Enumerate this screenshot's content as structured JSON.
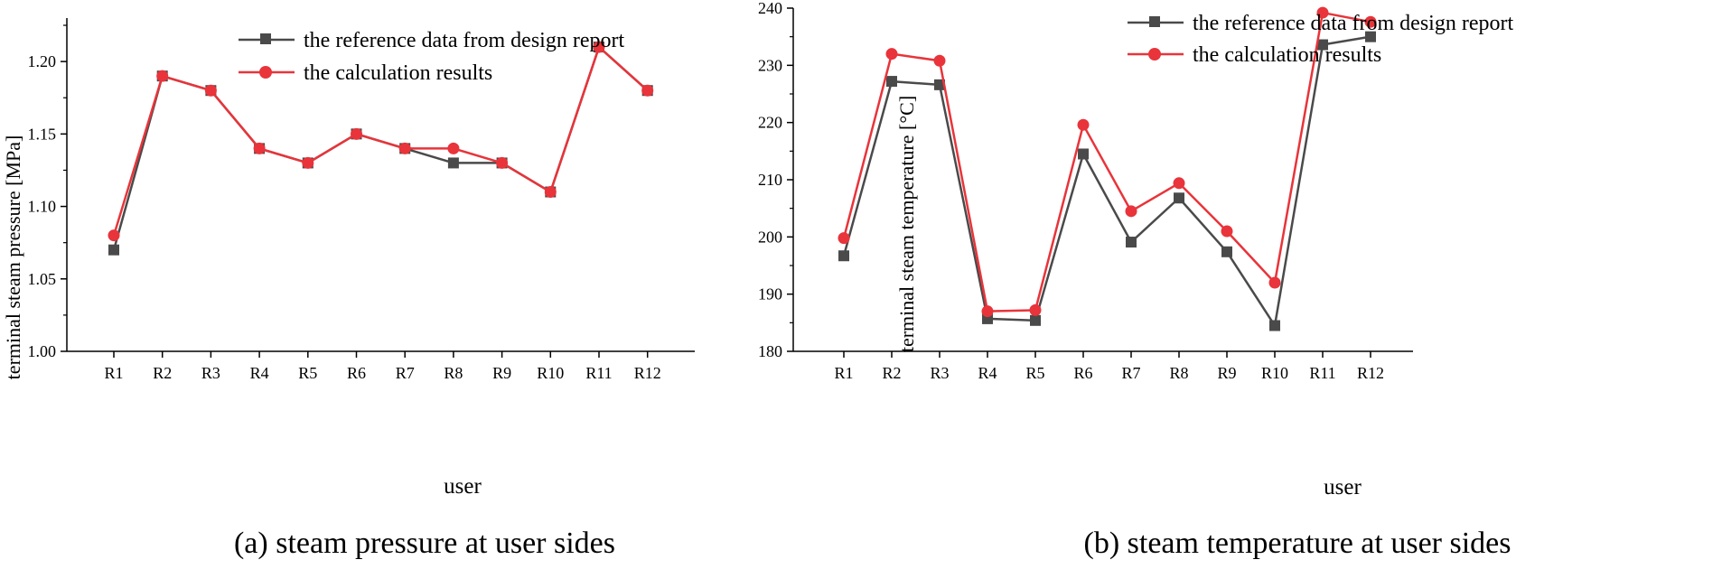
{
  "colors": {
    "reference": "#4a4a4a",
    "calculated": "#e8343a",
    "axis": "#000000"
  },
  "chart_data": [
    {
      "type": "line",
      "caption": "(a) steam pressure at user sides",
      "xlabel": "user",
      "ylabel": "terminal steam pressure [MPa]",
      "ylim": [
        1.0,
        1.23
      ],
      "yticks": [
        "1.00",
        "1.05",
        "1.10",
        "1.15",
        "1.20"
      ],
      "ytick_values": [
        1.0,
        1.05,
        1.1,
        1.15,
        1.2
      ],
      "categories": [
        "R1",
        "R2",
        "R3",
        "R4",
        "R5",
        "R6",
        "R7",
        "R8",
        "R9",
        "R10",
        "R11",
        "R12"
      ],
      "legend_position": "top-right",
      "series": [
        {
          "name": "the reference data from design report",
          "marker": "square",
          "values": [
            1.07,
            1.19,
            1.18,
            1.14,
            1.13,
            1.15,
            1.14,
            1.13,
            1.13,
            1.11,
            1.21,
            1.18
          ]
        },
        {
          "name": "the calculation results",
          "marker": "circle",
          "values": [
            1.08,
            1.19,
            1.18,
            1.14,
            1.13,
            1.15,
            1.14,
            1.14,
            1.13,
            1.11,
            1.21,
            1.18
          ]
        }
      ]
    },
    {
      "type": "line",
      "caption": "(b) steam temperature at user sides",
      "xlabel": "user",
      "ylabel": "terminal steam temperature [°C]",
      "ylim": [
        180,
        240
      ],
      "yticks": [
        "180",
        "190",
        "200",
        "210",
        "220",
        "230",
        "240"
      ],
      "ytick_values": [
        180,
        190,
        200,
        210,
        220,
        230,
        240
      ],
      "categories": [
        "R1",
        "R2",
        "R3",
        "R4",
        "R5",
        "R6",
        "R7",
        "R8",
        "R9",
        "R10",
        "R11",
        "R12"
      ],
      "legend_position": "top-right",
      "series": [
        {
          "name": "the reference data from design report",
          "marker": "square",
          "values": [
            196.7,
            227.2,
            226.6,
            185.7,
            185.4,
            214.5,
            199.1,
            206.8,
            197.4,
            184.5,
            233.6,
            235.0
          ]
        },
        {
          "name": "the calculation results",
          "marker": "circle",
          "values": [
            199.8,
            232.0,
            230.8,
            187.0,
            187.2,
            219.6,
            204.5,
            209.4,
            201.0,
            192.0,
            239.2,
            237.6
          ]
        }
      ]
    }
  ]
}
